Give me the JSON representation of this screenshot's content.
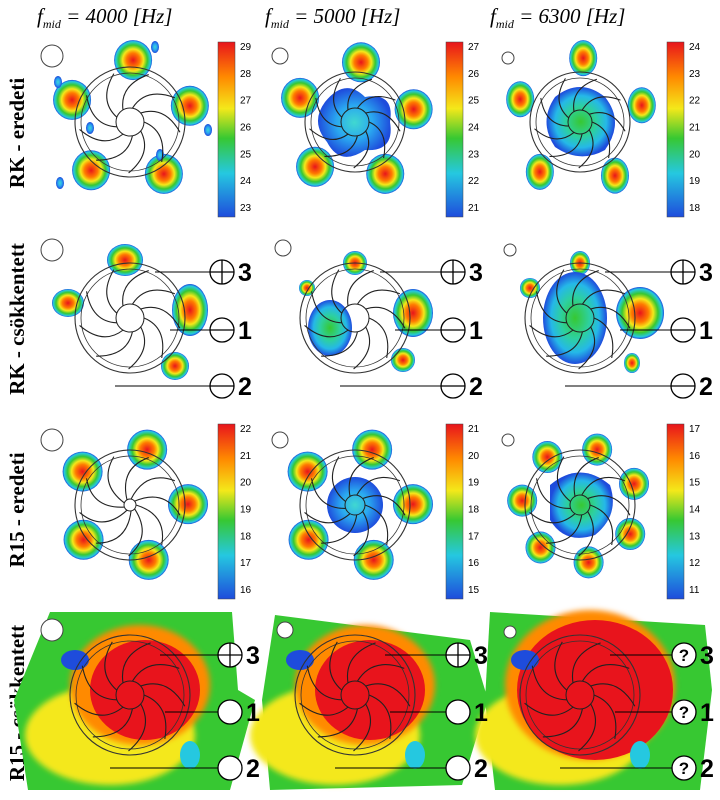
{
  "columns": [
    {
      "pre": "f",
      "sub": "mid",
      "post": " = 4000 [Hz]"
    },
    {
      "pre": "f",
      "sub": "mid",
      "post": " = 5000 [Hz]"
    },
    {
      "pre": "f",
      "sub": "mid",
      "post": " = 6300 [Hz]"
    }
  ],
  "rows": [
    {
      "label": "RK - eredeti"
    },
    {
      "label": "RK - csökkentett"
    },
    {
      "label": "R15 - eredeti"
    },
    {
      "label": "R15 - csökkentett"
    }
  ],
  "colorbars": [
    {
      "ticks": [
        "29",
        "28",
        "27",
        "26",
        "25",
        "24",
        "23"
      ]
    },
    {
      "ticks": [
        "27",
        "26",
        "25",
        "24",
        "23",
        "22",
        "21"
      ]
    },
    {
      "ticks": [
        "24",
        "23",
        "22",
        "21",
        "20",
        "19",
        "18"
      ]
    },
    {
      "ticks": [
        "22",
        "21",
        "20",
        "19",
        "18",
        "17",
        "16"
      ]
    },
    {
      "ticks": [
        "21",
        "20",
        "19",
        "18",
        "17",
        "16",
        "15"
      ]
    },
    {
      "ticks": [
        "17",
        "16",
        "15",
        "14",
        "13",
        "12",
        "11"
      ]
    }
  ],
  "callouts": {
    "plus": "3",
    "minus_inner": "1",
    "minus_outer": "2",
    "q3": "3",
    "q1": "1",
    "q2": "2",
    "question": "?"
  },
  "colors": {
    "red": "#e8141c",
    "orange": "#ff8a00",
    "yellow": "#f4e81a",
    "green": "#37c832",
    "cyan": "#25c8e0",
    "blue": "#1e4cdc"
  }
}
